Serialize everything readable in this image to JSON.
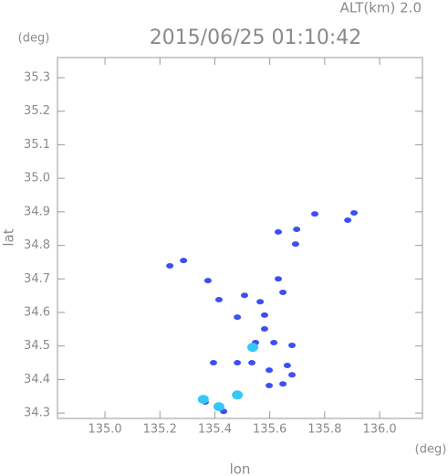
{
  "chart_data": {
    "type": "scatter",
    "title": "2015/06/25 01:10:42",
    "subtitle": "ALT(km) 2.0",
    "y_unit": "(deg)",
    "x_unit": "(deg)",
    "x_label": "lon",
    "y_label": "lat",
    "xlim": [
      134.827,
      136.156
    ],
    "ylim": [
      34.284,
      35.36
    ],
    "xticks": [
      {
        "value": 135,
        "label": "135.0"
      },
      135.2,
      135.4,
      135.6,
      135.8,
      {
        "value": 136,
        "label": "136.0"
      }
    ],
    "yticks": [
      34.3,
      34.4,
      34.5,
      34.6,
      34.7,
      34.8,
      34.9,
      {
        "value": 35,
        "label": "35.0"
      },
      35.1,
      35.2,
      35.3
    ],
    "series": [
      {
        "color": "#3d4ff2",
        "x": [
          135.764,
          135.884,
          135.907,
          135.698,
          135.694,
          135.631,
          135.236,
          135.286,
          135.375,
          135.415,
          135.508,
          135.631,
          135.648,
          135.565,
          135.581,
          135.482,
          135.581,
          135.548,
          135.615,
          135.681,
          135.395,
          135.482,
          135.535,
          135.664,
          135.598,
          135.681,
          135.648,
          135.598,
          135.365,
          135.432
        ],
        "y": [
          34.894,
          34.875,
          34.897,
          34.848,
          34.804,
          34.84,
          34.739,
          34.755,
          34.695,
          34.638,
          34.651,
          34.7,
          34.66,
          34.632,
          34.592,
          34.586,
          34.551,
          34.51,
          34.51,
          34.502,
          34.45,
          34.45,
          34.45,
          34.442,
          34.428,
          34.414,
          34.387,
          34.382,
          34.333,
          34.305
        ]
      },
      {
        "color": "#36c8f5",
        "x": [
          135.538,
          135.482,
          135.415,
          135.358
        ],
        "y": [
          34.496,
          34.354,
          34.319,
          34.341
        ]
      }
    ]
  }
}
